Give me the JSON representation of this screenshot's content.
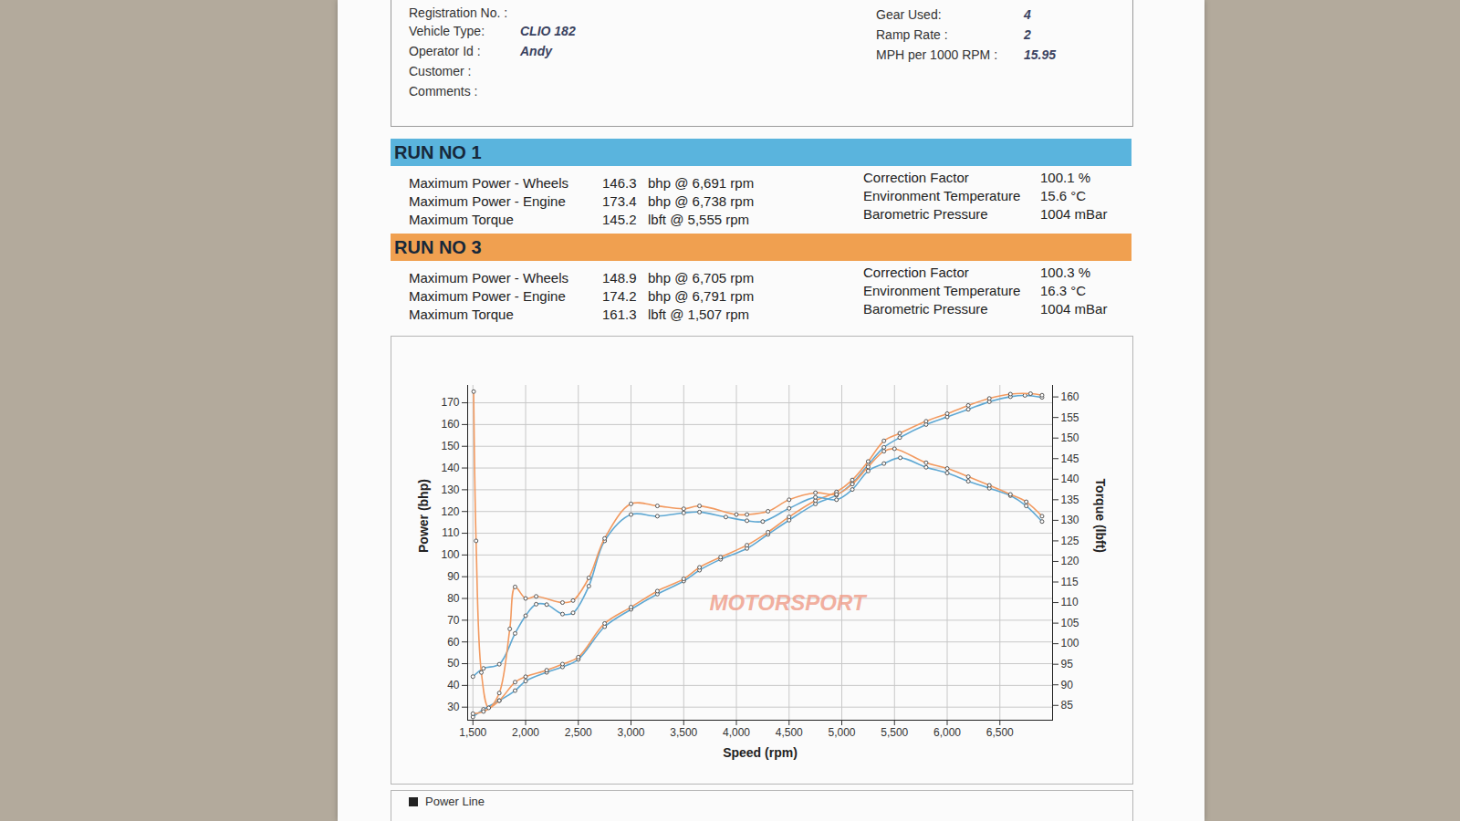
{
  "header": {
    "fields_left": [
      {
        "label": "Registration No. :"
      },
      {
        "label": "Vehicle Type:",
        "value": "CLIO 182"
      },
      {
        "label": "Operator Id :",
        "value": "Andy"
      },
      {
        "label": "Customer :"
      },
      {
        "label": "Comments :"
      }
    ],
    "fields_right": [
      {
        "label": "Gear Used:",
        "value": "4"
      },
      {
        "label": "Ramp Rate :",
        "value": "2"
      },
      {
        "label": "MPH per 1000 RPM :",
        "value": "15.95"
      }
    ]
  },
  "runs": [
    {
      "title": "RUN NO 1",
      "color": "#5ab4dd",
      "rows": [
        {
          "label": "Maximum Power - Wheels",
          "value": "146.3",
          "detail": "bhp @ 6,691 rpm"
        },
        {
          "label": "Maximum Power - Engine",
          "value": "173.4",
          "detail": "bhp @ 6,738 rpm"
        },
        {
          "label": "Maximum Torque",
          "value": "145.2",
          "detail": "lbft @ 5,555 rpm"
        }
      ],
      "conditions": [
        {
          "label": "Correction Factor",
          "value": "100.1 %"
        },
        {
          "label": "Environment Temperature",
          "value": "15.6 °C"
        },
        {
          "label": "Barometric Pressure",
          "value": "1004 mBar"
        }
      ]
    },
    {
      "title": "RUN NO 3",
      "color": "#f0a050",
      "rows": [
        {
          "label": "Maximum Power - Wheels",
          "value": "148.9",
          "detail": "bhp @ 6,705 rpm"
        },
        {
          "label": "Maximum Power - Engine",
          "value": "174.2",
          "detail": "bhp @ 6,791 rpm"
        },
        {
          "label": "Maximum Torque",
          "value": "161.3",
          "detail": "lbft @ 1,507 rpm"
        }
      ],
      "conditions": [
        {
          "label": "Correction Factor",
          "value": "100.3 %"
        },
        {
          "label": "Environment Temperature",
          "value": "16.3 °C"
        },
        {
          "label": "Barometric Pressure",
          "value": "1004 mBar"
        }
      ]
    }
  ],
  "chart_data": {
    "type": "line",
    "x_label": "Speed (rpm)",
    "y_label": "Power (bhp)",
    "y2_label": "Torque (lbft)",
    "watermark": "MOTORSPORT",
    "xlim": [
      1450,
      7000
    ],
    "xticks": [
      {
        "value": 1500,
        "label": "1,500"
      },
      {
        "value": 2000,
        "label": "2,000"
      },
      {
        "value": 2500,
        "label": "2,500"
      },
      {
        "value": 3000,
        "label": "3,000"
      },
      {
        "value": 3500,
        "label": "3,500"
      },
      {
        "value": 4000,
        "label": "4,000"
      },
      {
        "value": 4500,
        "label": "4,500"
      },
      {
        "value": 5000,
        "label": "5,000"
      },
      {
        "value": 5500,
        "label": "5,500"
      },
      {
        "value": 6000,
        "label": "6,000"
      },
      {
        "value": 6500,
        "label": "6,500"
      }
    ],
    "ylim": [
      24,
      178
    ],
    "yticks": [
      30,
      40,
      50,
      60,
      70,
      80,
      90,
      100,
      110,
      120,
      130,
      140,
      150,
      160,
      170
    ],
    "y2lim": [
      81.4,
      162.8
    ],
    "y2ticks": [
      85,
      90,
      95,
      100,
      105,
      110,
      115,
      120,
      125,
      130,
      135,
      140,
      145,
      150,
      155,
      160
    ],
    "grid": true,
    "marker": "circle",
    "series": [
      {
        "name": "RUN NO 1",
        "color": "#5fa8d3",
        "axis": "y",
        "x": [
          1500,
          1600,
          1750,
          1900,
          2000,
          2200,
          2350,
          2500,
          2750,
          3000,
          3250,
          3500,
          3650,
          3850,
          4100,
          4300,
          4500,
          4750,
          4950,
          5100,
          5250,
          5400,
          5550,
          5800,
          6000,
          6200,
          6400,
          6600,
          6738,
          6900
        ],
        "values": [
          25.5,
          29,
          33,
          37.6,
          42,
          46,
          48.5,
          52,
          67,
          75,
          82,
          88,
          93,
          98,
          103,
          109.5,
          116,
          123.5,
          127.5,
          133,
          141.5,
          149.5,
          154,
          160,
          163.5,
          167,
          170.5,
          172.8,
          173.4,
          172.5
        ]
      },
      {
        "name": "RUN NO 3",
        "color": "#f29a60",
        "axis": "y",
        "x": [
          1500,
          1600,
          1750,
          1900,
          2000,
          2200,
          2350,
          2500,
          2750,
          3000,
          3250,
          3500,
          3650,
          3850,
          4100,
          4300,
          4500,
          4750,
          4950,
          5100,
          5250,
          5400,
          5550,
          5800,
          6000,
          6200,
          6400,
          6600,
          6791,
          6900
        ],
        "values": [
          27,
          28,
          33,
          41.5,
          44,
          47,
          49.8,
          53,
          68.5,
          76,
          83.4,
          89,
          94.3,
          99,
          104.5,
          110.5,
          117.5,
          125,
          129,
          134.5,
          143,
          152.5,
          156,
          161.5,
          165,
          168.8,
          172,
          174,
          174.2,
          173.5
        ]
      },
      {
        "name": "RUN NO 1",
        "color": "#5fa8d3",
        "axis": "y2",
        "x": [
          1500,
          1600,
          1750,
          1900,
          2000,
          2100,
          2200,
          2350,
          2450,
          2600,
          2750,
          3000,
          3250,
          3500,
          3650,
          3900,
          4100,
          4250,
          4500,
          4750,
          4950,
          5100,
          5250,
          5400,
          5555,
          5800,
          6000,
          6200,
          6400,
          6600,
          6750,
          6900
        ],
        "values": [
          92,
          94,
          95,
          102.5,
          106.8,
          109.6,
          109.5,
          107.2,
          107.5,
          114,
          125,
          131.4,
          131,
          131.8,
          132,
          130.8,
          129.9,
          129.7,
          132.9,
          135.6,
          135,
          137.5,
          142,
          143.8,
          145.2,
          142.9,
          141.5,
          139.5,
          137.8,
          136,
          133.5,
          129.7
        ]
      },
      {
        "name": "RUN NO 3",
        "color": "#f29a60",
        "axis": "y2",
        "x": [
          1507,
          1530,
          1580,
          1650,
          1750,
          1850,
          1900,
          2000,
          2100,
          2350,
          2450,
          2600,
          2750,
          3000,
          3250,
          3500,
          3650,
          4000,
          4100,
          4300,
          4500,
          4750,
          4950,
          5100,
          5250,
          5400,
          5500,
          5800,
          6000,
          6200,
          6400,
          6600,
          6750,
          6900
        ],
        "values": [
          161.3,
          125,
          93,
          84.4,
          88,
          103.6,
          113.8,
          111,
          111.5,
          110,
          110.5,
          116,
          125.6,
          134,
          133.5,
          132.8,
          133.5,
          131.4,
          131.4,
          132.2,
          135,
          136.7,
          136.3,
          138.8,
          143,
          146.8,
          147.4,
          144,
          142.6,
          140.6,
          138.5,
          136.3,
          134.5,
          131
        ]
      }
    ]
  },
  "footer": {
    "text": "Power Line"
  }
}
